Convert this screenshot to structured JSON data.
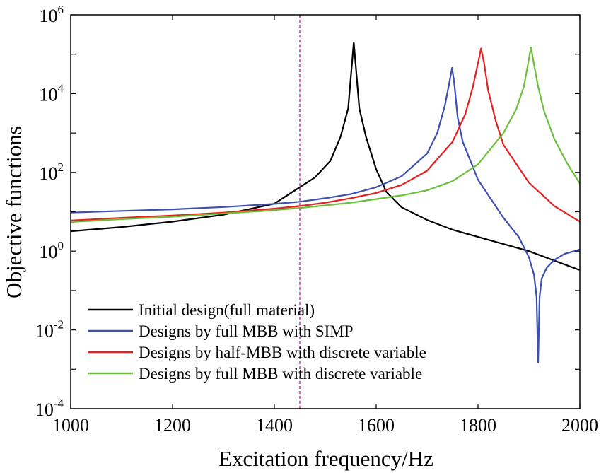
{
  "chart_data": {
    "type": "line",
    "title": "",
    "xlabel": "Excitation frequency/Hz",
    "ylabel": "Objective functions",
    "xlim": [
      1000,
      2000
    ],
    "ylim_log10": [
      -4,
      6
    ],
    "yscale": "log",
    "x_ticks": [
      1000,
      1200,
      1400,
      1600,
      1800,
      2000
    ],
    "x_tick_labels": [
      "1000",
      "1200",
      "1400",
      "1600",
      "1800",
      "2000"
    ],
    "y_ticks_exp": [
      -4,
      -2,
      0,
      2,
      4,
      6
    ],
    "y_tick_base": "10",
    "y_tick_exponents": [
      "-4",
      "-2",
      "0",
      "2",
      "4",
      "6"
    ],
    "reference_line": {
      "x": 1450,
      "color": "#c0399a",
      "style": "dashed"
    },
    "legend_location": "lower-left",
    "series": [
      {
        "name": "Initial design(full material)",
        "color": "#000000",
        "x": [
          1000,
          1100,
          1200,
          1300,
          1400,
          1450,
          1480,
          1510,
          1530,
          1545,
          1556,
          1567,
          1580,
          1600,
          1620,
          1650,
          1700,
          1750,
          1800,
          1900,
          2000
        ],
        "y": [
          3.2,
          4.1,
          5.6,
          8.4,
          16,
          42,
          75,
          195,
          800,
          4200,
          200000,
          4200,
          800,
          120,
          32,
          13,
          6.2,
          3.5,
          2.3,
          1.0,
          0.33
        ]
      },
      {
        "name": "Designs by full MBB with SIMP",
        "color": "#3d4fb0",
        "x": [
          1000,
          1100,
          1200,
          1300,
          1400,
          1450,
          1500,
          1550,
          1600,
          1650,
          1700,
          1720,
          1735,
          1744,
          1749,
          1753,
          1760,
          1770,
          1800,
          1850,
          1880,
          1900,
          1910,
          1915,
          1918,
          1921,
          1925,
          1935,
          1950,
          1970,
          2000
        ],
        "y": [
          9.5,
          10.5,
          11.5,
          13.2,
          15.8,
          18,
          22,
          28,
          42,
          80,
          300,
          1000,
          5000,
          20000,
          45000,
          20000,
          2500,
          600,
          65,
          7,
          2.3,
          0.7,
          0.25,
          0.07,
          0.0015,
          0.07,
          0.2,
          0.38,
          0.6,
          0.85,
          1.1
        ]
      },
      {
        "name": "Designs by half-MBB with discrete variable",
        "color": "#e62020",
        "x": [
          1000,
          1100,
          1200,
          1300,
          1400,
          1450,
          1500,
          1550,
          1600,
          1650,
          1700,
          1750,
          1775,
          1790,
          1800,
          1806,
          1812,
          1820,
          1835,
          1850,
          1900,
          1950,
          2000
        ],
        "y": [
          6,
          7,
          8,
          9.5,
          12,
          14,
          17,
          22,
          30,
          48,
          110,
          600,
          3000,
          15000,
          60000,
          140000,
          60000,
          12000,
          2000,
          500,
          55,
          14,
          5.6
        ]
      },
      {
        "name": "Designs by full MBB with discrete variable",
        "color": "#6cbf3c",
        "x": [
          1000,
          1100,
          1200,
          1300,
          1400,
          1450,
          1500,
          1550,
          1600,
          1650,
          1700,
          1750,
          1800,
          1850,
          1875,
          1890,
          1898,
          1904,
          1910,
          1918,
          1930,
          1950,
          1975,
          2000
        ],
        "y": [
          5.5,
          6.5,
          7.5,
          9,
          11,
          12.5,
          14.5,
          17,
          21,
          26,
          35,
          60,
          160,
          1000,
          4000,
          15000,
          55000,
          150000,
          55000,
          15000,
          3500,
          700,
          170,
          52
        ]
      }
    ]
  }
}
